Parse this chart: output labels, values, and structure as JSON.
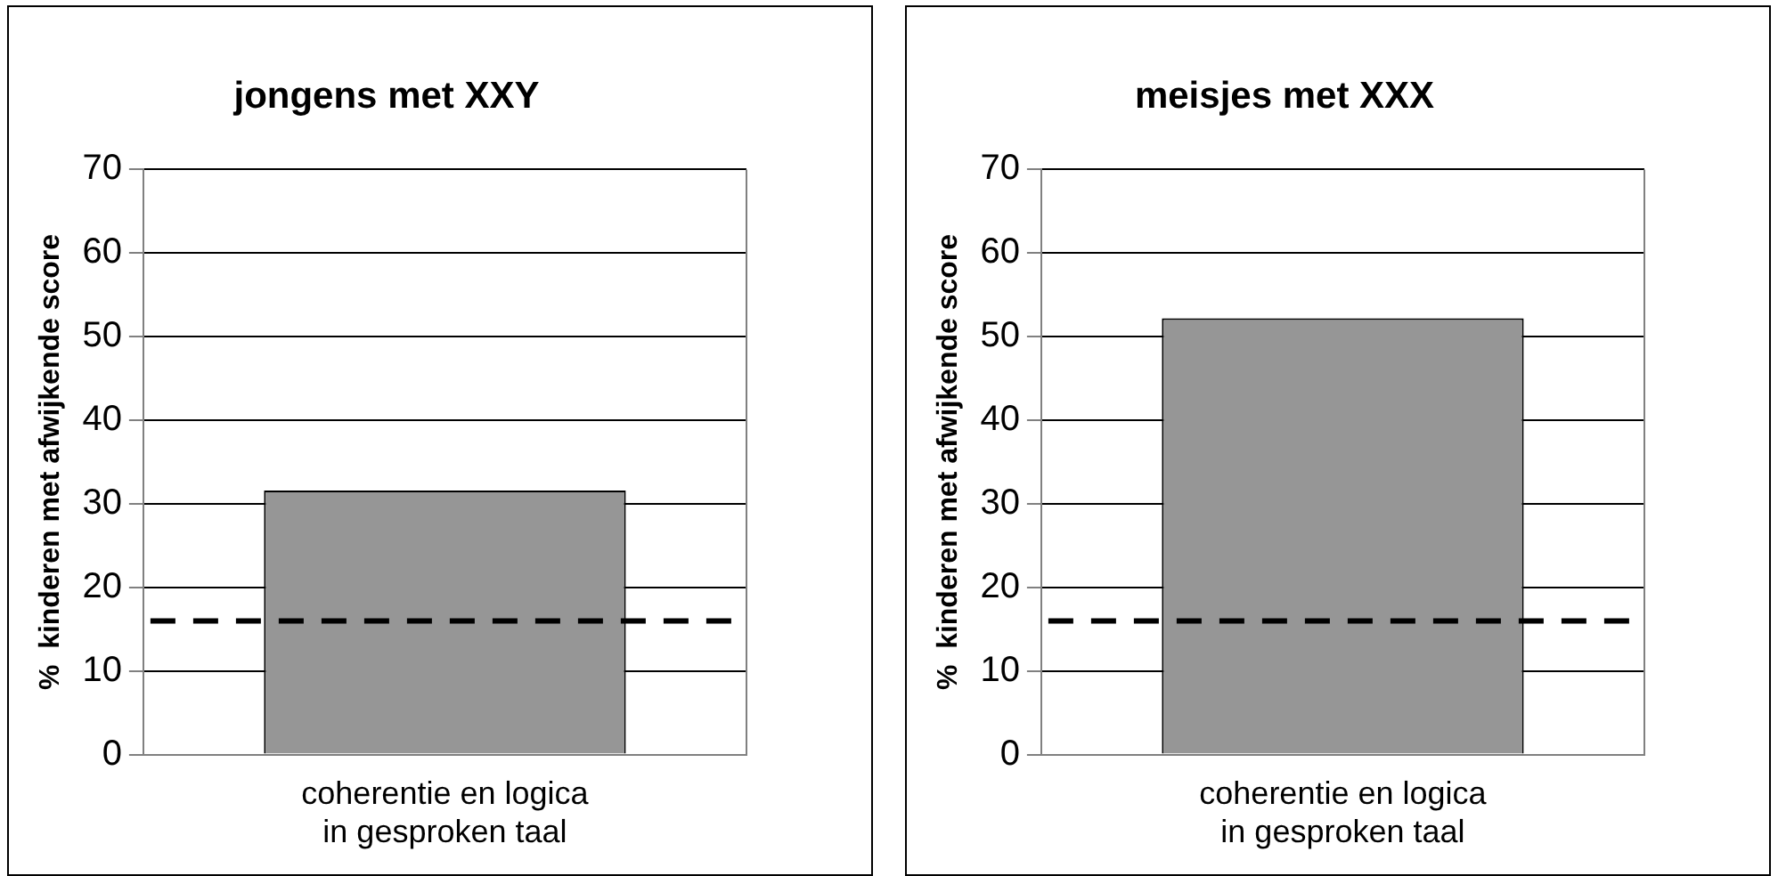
{
  "chart_data": [
    {
      "type": "bar",
      "title": "jongens met XXY",
      "ylabel": "%  kinderen met afwijkende score",
      "categories": [
        "coherentie en logica in gesproken taal"
      ],
      "values": [
        31.6
      ],
      "color": "#969696",
      "ylim": [
        0,
        70
      ],
      "yticks": [
        0,
        10,
        20,
        30,
        40,
        50,
        60,
        70
      ],
      "grid": "y",
      "ref_lines": [
        {
          "axis": "y",
          "value": 16,
          "color": "#000000",
          "line_style": "dashed"
        }
      ]
    },
    {
      "type": "bar",
      "title": "meisjes met XXX",
      "ylabel": "%  kinderen met afwijkende score",
      "categories": [
        "coherentie en logica in gesproken taal"
      ],
      "values": [
        52.2
      ],
      "color": "#969696",
      "ylim": [
        0,
        70
      ],
      "yticks": [
        0,
        10,
        20,
        30,
        40,
        50,
        60,
        70
      ],
      "grid": "y",
      "ref_lines": [
        {
          "axis": "y",
          "value": 16,
          "color": "#000000",
          "line_style": "dashed"
        }
      ]
    }
  ]
}
